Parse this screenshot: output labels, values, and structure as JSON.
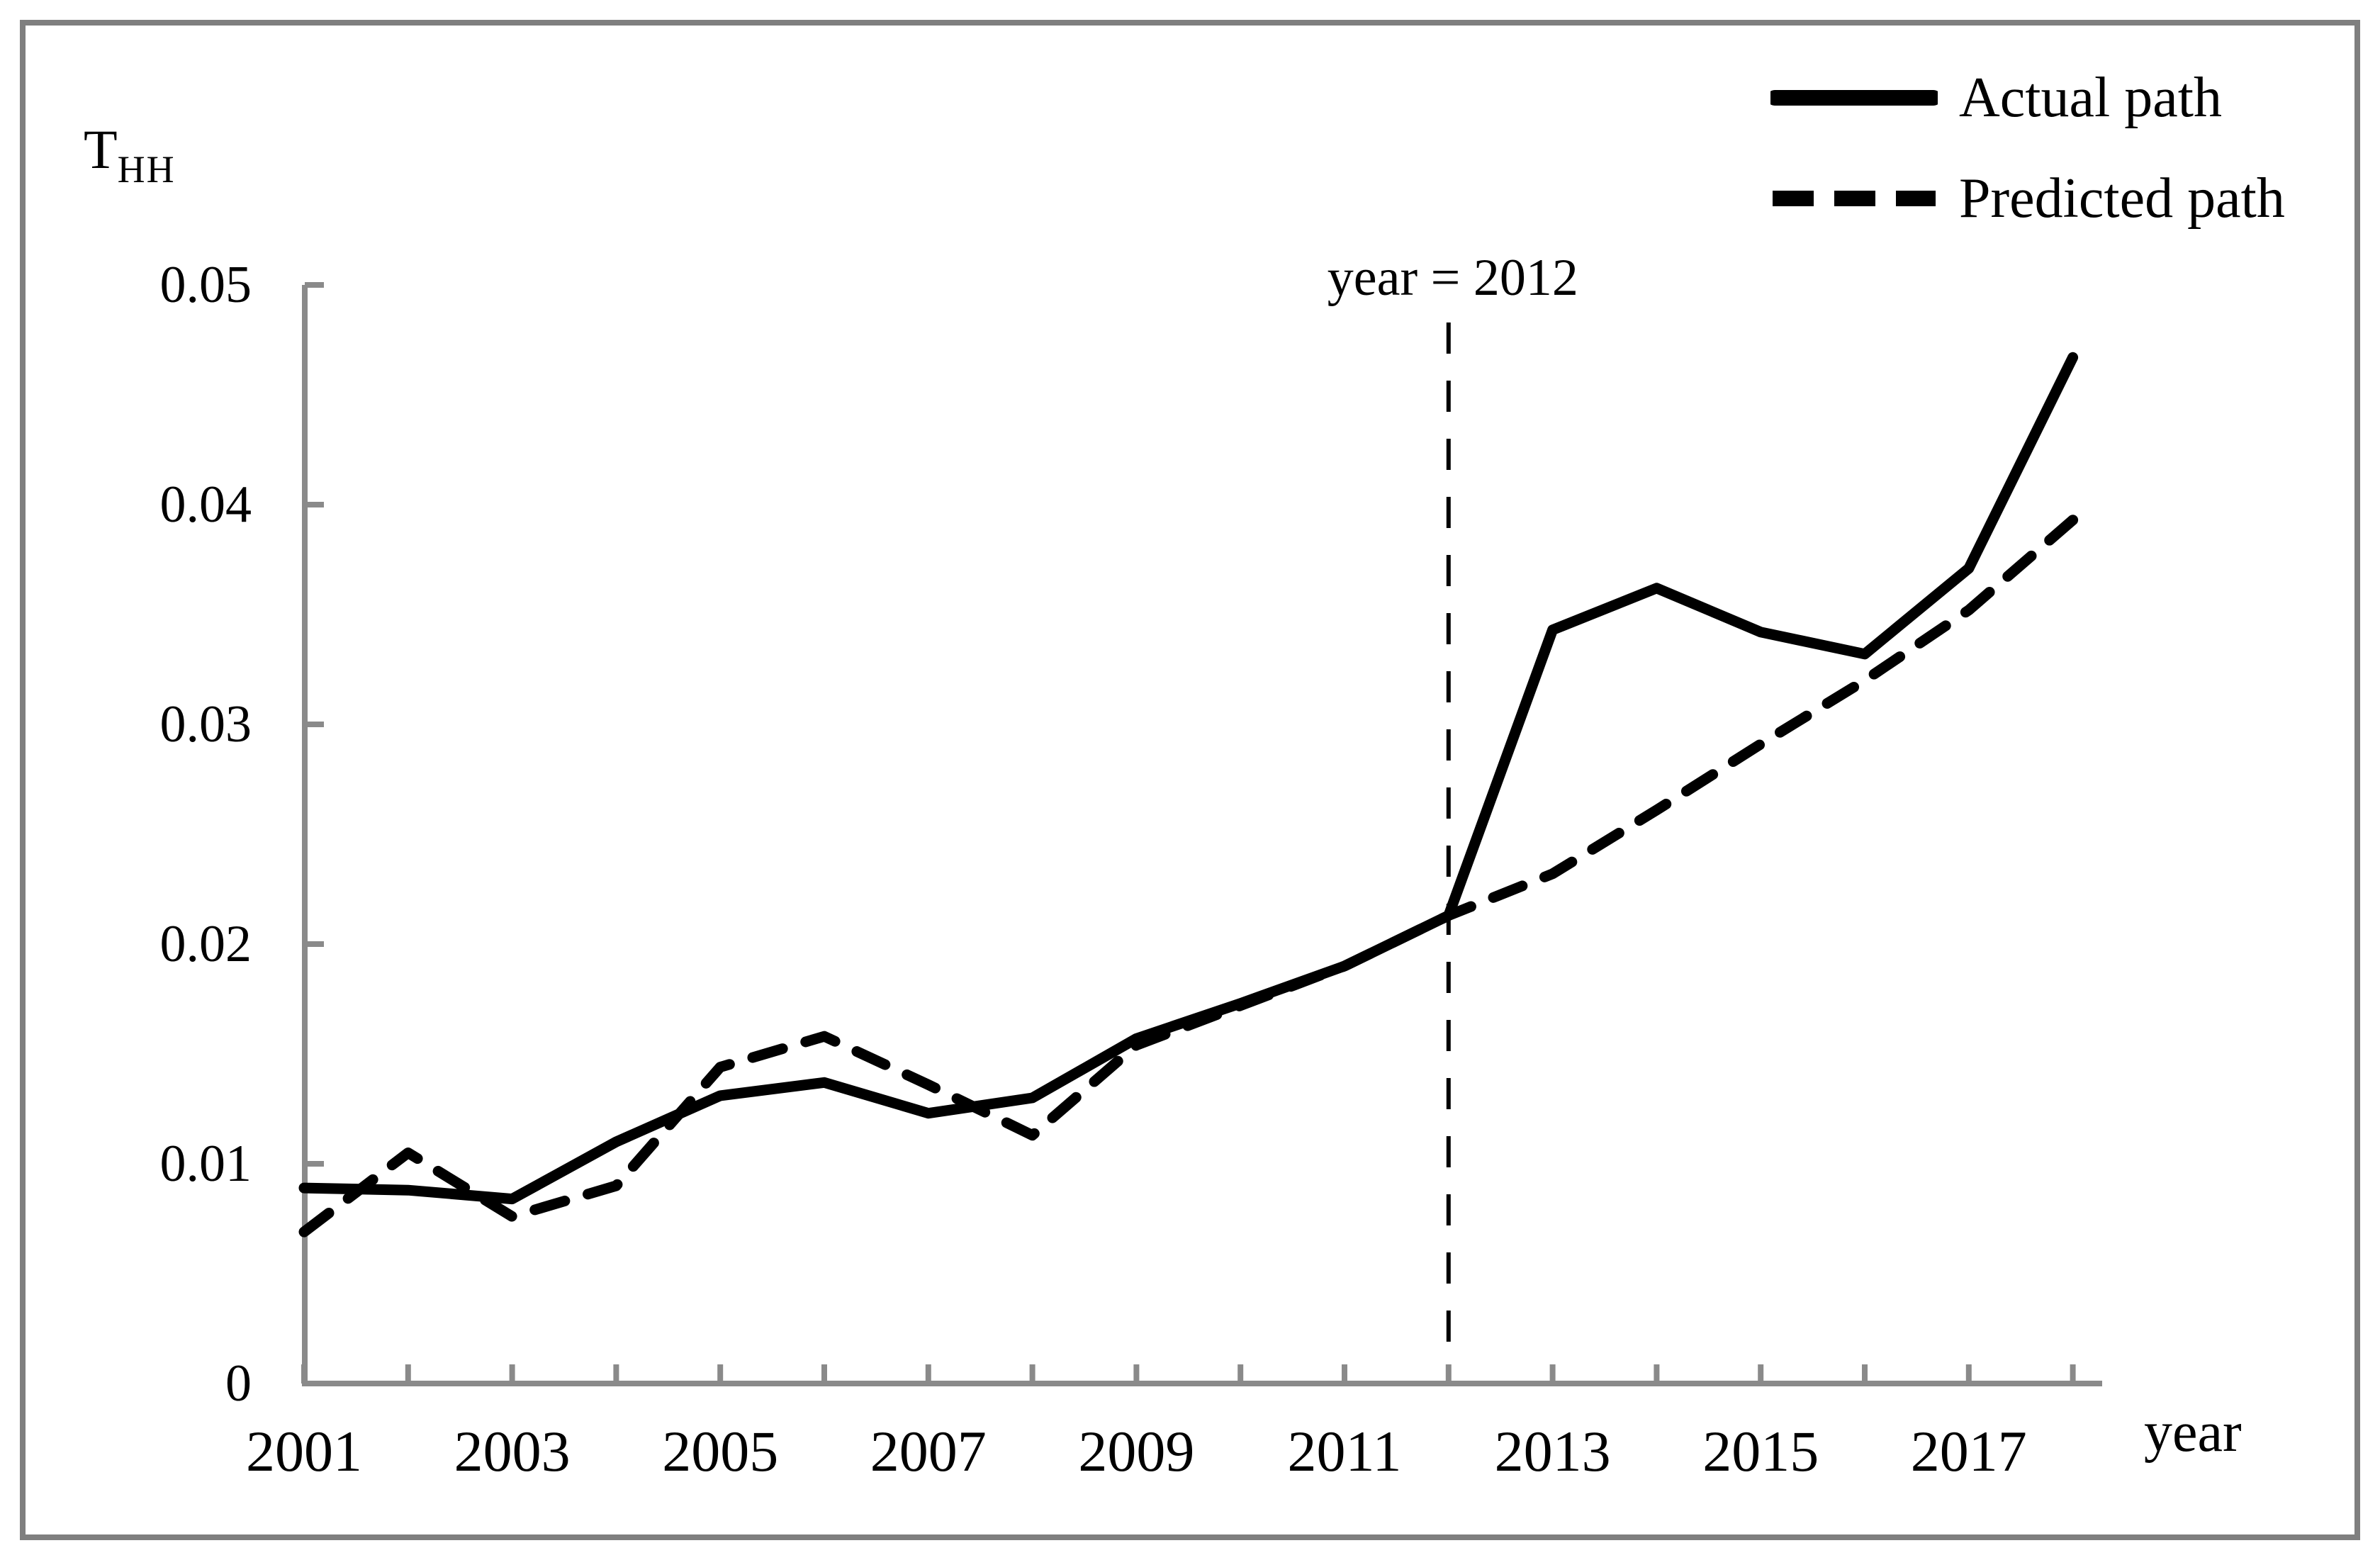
{
  "colors": {
    "line": "#000000",
    "axis": "#8a8a8a",
    "frame_border": "#7f7f7f",
    "background": "#ffffff"
  },
  "chart_data": {
    "type": "line",
    "title": "",
    "x": [
      2001,
      2002,
      2003,
      2004,
      2005,
      2006,
      2007,
      2008,
      2009,
      2010,
      2011,
      2012,
      2013,
      2014,
      2015,
      2016,
      2017,
      2018
    ],
    "series": [
      {
        "name": "Actual path",
        "style": "solid",
        "values": [
          0.0089,
          0.0088,
          0.0084,
          0.011,
          0.0131,
          0.0137,
          0.0123,
          0.013,
          0.0157,
          0.0173,
          0.019,
          0.0213,
          0.0343,
          0.0362,
          0.0342,
          0.0332,
          0.0371,
          0.0467
        ]
      },
      {
        "name": "Predicted path",
        "style": "dashed",
        "values": [
          0.0069,
          0.0105,
          0.0076,
          0.009,
          0.0144,
          0.0158,
          0.0136,
          0.0113,
          0.0154,
          0.0172,
          0.019,
          0.0213,
          0.0232,
          0.0261,
          0.0291,
          0.032,
          0.0352,
          0.0393
        ]
      }
    ],
    "y_axis": {
      "title_base": "T",
      "title_sub": "HH",
      "ticks": [
        {
          "value": 0,
          "label": "0"
        },
        {
          "value": 0.01,
          "label": "0.01"
        },
        {
          "value": 0.02,
          "label": "0.02"
        },
        {
          "value": 0.03,
          "label": "0.03"
        },
        {
          "value": 0.04,
          "label": "0.04"
        },
        {
          "value": 0.05,
          "label": "0.05"
        }
      ]
    },
    "x_axis": {
      "title": "year",
      "tick_years": [
        2001,
        2002,
        2003,
        2004,
        2005,
        2006,
        2007,
        2008,
        2009,
        2010,
        2011,
        2012,
        2013,
        2014,
        2015,
        2016,
        2017,
        2018
      ],
      "label_years": [
        "2001",
        "2003",
        "2005",
        "2007",
        "2009",
        "2011",
        "2013",
        "2015",
        "2017"
      ]
    },
    "ylim": [
      0,
      0.05
    ],
    "xlim": [
      2001,
      2018
    ],
    "grid": false,
    "legend_position": "top-right",
    "annotation": {
      "text": "year = 2012",
      "year": 2012
    }
  }
}
